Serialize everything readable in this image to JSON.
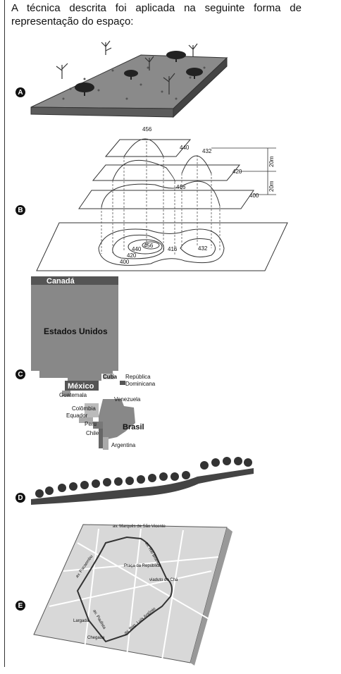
{
  "question": {
    "text": "A técnica descrita foi aplicada na seguinte forma de representação do espaço:"
  },
  "options": [
    {
      "letter": "A"
    },
    {
      "letter": "B"
    },
    {
      "letter": "C"
    },
    {
      "letter": "D"
    },
    {
      "letter": "E"
    }
  ],
  "contour_figure": {
    "labels": [
      "456",
      "440",
      "432",
      "420",
      "416",
      "400",
      "20m",
      "20m"
    ],
    "base_labels": [
      "456",
      "440",
      "420",
      "400",
      "416",
      "432"
    ]
  },
  "map_c": {
    "countries": {
      "canada": "Canadá",
      "usa": "Estados Unidos",
      "mexico": "México",
      "cuba": "Cuba",
      "dominican": "República Dominicana",
      "guatemala": "Guatemala",
      "venezuela": "Venezuela",
      "colombia": "Colômbia",
      "ecuador": "Equador",
      "brasil": "Brasil",
      "peru": "Peru",
      "chile": "Chile",
      "argentina": "Argentina"
    }
  },
  "map_e": {
    "labels": {
      "marques": "av. Marquês de São Vicente",
      "rio_branco": "av. Rio Branco",
      "pacaembu": "av. Pacaembu",
      "praca": "Praça da República",
      "viaduto": "viaduto do Chá",
      "paulista": "av. Paulista",
      "largada": "Largada",
      "brig": "av. Brig. Luís Antônio",
      "chegada": "Chegada"
    }
  }
}
